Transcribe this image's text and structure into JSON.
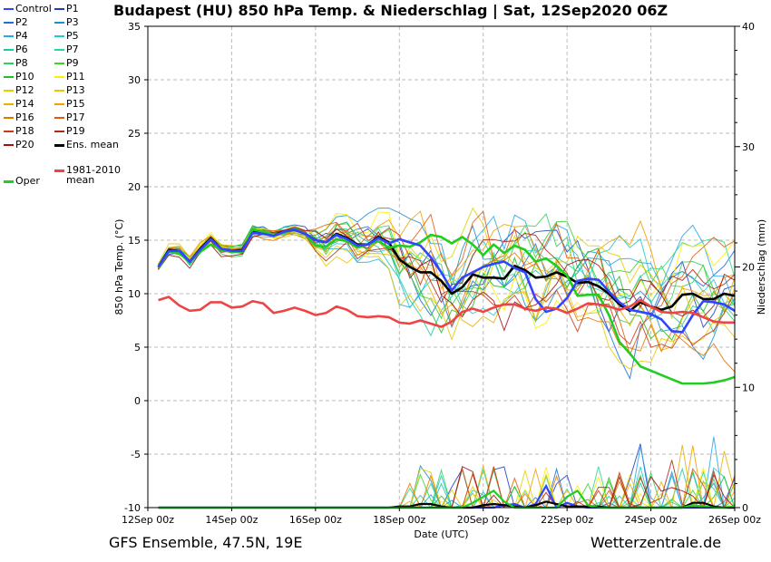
{
  "title": "Budapest  (HU)  850 hPa Temp. & Niederschlag | Sat, 12Sep2020 06Z",
  "footer_left": "GFS Ensemble, 47.5N, 19E",
  "footer_right": "Wetterzentrale.de",
  "chart_data": {
    "type": "line",
    "title": "Budapest  (HU)  850 hPa Temp. & Niederschlag | Sat, 12Sep2020 06Z",
    "xlabel": "Date (UTC)",
    "ylabel": "850 hPa Temp. (°C)",
    "y2label": "Niederschlag (mm)",
    "x_ticks": [
      "12Sep 00z",
      "14Sep 00z",
      "16Sep 00z",
      "18Sep 00z",
      "20Sep 00z",
      "22Sep 00z",
      "24Sep 00z",
      "26Sep 00z"
    ],
    "x_range_hours": [
      0,
      336
    ],
    "ylim": [
      -10,
      35
    ],
    "y_ticks": [
      -10,
      -5,
      0,
      5,
      10,
      15,
      20,
      25,
      30,
      35
    ],
    "y2lim": [
      0,
      40
    ],
    "y2_ticks": [
      0,
      10,
      20,
      30,
      40
    ],
    "x_hours": [
      6,
      12,
      18,
      24,
      30,
      36,
      42,
      48,
      54,
      60,
      66,
      72,
      78,
      84,
      90,
      96,
      102,
      108,
      114,
      120,
      126,
      132,
      138,
      144,
      150,
      156,
      162,
      168,
      174,
      180,
      186,
      192,
      198,
      204,
      210,
      216,
      222,
      228,
      234,
      240,
      246,
      252,
      258,
      264,
      270,
      276,
      282,
      288,
      294,
      300,
      306,
      312,
      318,
      324,
      330,
      336
    ],
    "key_series": [
      {
        "name": "Ens. mean",
        "color": "#000000",
        "width": 2.6,
        "values": [
          12.5,
          14.1,
          14.0,
          13.0,
          14.2,
          15.2,
          14.2,
          14.0,
          14.1,
          15.8,
          15.7,
          15.5,
          15.8,
          16.0,
          15.6,
          15.0,
          14.8,
          15.6,
          15.2,
          14.6,
          14.6,
          15.3,
          14.8,
          13.2,
          12.5,
          12.0,
          12.0,
          11.2,
          10.0,
          10.6,
          11.8,
          11.5,
          11.5,
          11.4,
          12.6,
          12.2,
          11.5,
          11.6,
          12.0,
          11.6,
          11.0,
          11.1,
          10.7,
          10.0,
          9.0,
          8.4,
          9.2,
          8.8,
          8.5,
          8.8,
          9.9,
          10.0,
          9.5,
          9.5,
          10.0,
          9.8
        ]
      },
      {
        "name": "Oper",
        "color": "#22cc22",
        "width": 2.6,
        "values": [
          12.4,
          13.9,
          13.8,
          13.0,
          13.9,
          14.6,
          14.1,
          13.9,
          13.9,
          16.0,
          15.8,
          15.5,
          15.7,
          16.1,
          15.6,
          14.5,
          14.4,
          15.1,
          14.9,
          14.3,
          14.6,
          14.9,
          14.3,
          14.5,
          14.4,
          14.8,
          15.5,
          15.3,
          14.7,
          15.3,
          14.6,
          13.6,
          14.6,
          13.8,
          14.5,
          14.1,
          13.0,
          13.3,
          12.6,
          11.7,
          9.8,
          9.9,
          9.9,
          8.0,
          5.5,
          4.4,
          3.2,
          2.8,
          2.4,
          2.0,
          1.6,
          1.6,
          1.6,
          1.7,
          1.9,
          2.2
        ]
      },
      {
        "name": "Control",
        "color": "#3344ff",
        "width": 2.6,
        "values": [
          12.5,
          14.0,
          14.0,
          13.0,
          14.1,
          15.1,
          14.2,
          14.0,
          14.0,
          15.7,
          15.6,
          15.4,
          15.8,
          16.0,
          15.6,
          15.0,
          14.8,
          15.5,
          15.1,
          14.5,
          14.6,
          15.2,
          14.7,
          15.1,
          14.8,
          14.5,
          13.4,
          12.0,
          10.3,
          11.5,
          12.0,
          12.5,
          12.8,
          13.0,
          12.4,
          12.0,
          9.5,
          8.3,
          8.6,
          9.6,
          11.2,
          11.4,
          11.3,
          10.2,
          9.2,
          8.5,
          8.3,
          8.1,
          7.6,
          6.5,
          6.4,
          8.0,
          9.3,
          9.2,
          9.0,
          8.4
        ]
      },
      {
        "name": "1981-2010 mean",
        "color": "#ee4444",
        "width": 2.6,
        "values": [
          9.4,
          9.7,
          8.9,
          8.4,
          8.5,
          9.2,
          9.2,
          8.7,
          8.8,
          9.3,
          9.1,
          8.2,
          8.4,
          8.7,
          8.4,
          8.0,
          8.2,
          8.8,
          8.5,
          7.9,
          7.8,
          7.9,
          7.8,
          7.3,
          7.2,
          7.5,
          7.2,
          6.9,
          7.4,
          8.3,
          8.6,
          8.3,
          8.7,
          9.0,
          9.0,
          8.6,
          8.4,
          8.7,
          8.6,
          8.2,
          8.6,
          9.1,
          9.0,
          8.8,
          8.5,
          8.8,
          9.4,
          8.8,
          8.3,
          8.2,
          8.3,
          8.2,
          7.8,
          7.4,
          7.3,
          7.3
        ]
      }
    ],
    "precip_series": [
      {
        "name": "Control",
        "color": "#3344ff",
        "width": 2.2,
        "values": [
          0,
          0,
          0,
          0,
          0,
          0,
          0,
          0,
          0,
          0,
          0,
          0,
          0,
          0,
          0,
          0,
          0,
          0,
          0,
          0,
          0,
          0,
          0,
          0,
          0,
          0,
          0,
          0,
          0,
          0,
          0,
          0,
          0,
          0.2,
          0.3,
          0,
          0.3,
          1.8,
          0,
          0.4,
          0.1,
          0,
          0,
          0,
          0,
          0,
          0,
          0,
          0,
          0,
          0,
          0,
          0,
          0,
          0,
          0
        ]
      },
      {
        "name": "Ens. mean",
        "color": "#000000",
        "width": 2.2,
        "values": [
          0,
          0,
          0,
          0,
          0,
          0,
          0,
          0,
          0,
          0,
          0,
          0,
          0,
          0,
          0,
          0,
          0,
          0,
          0,
          0,
          0,
          0,
          0,
          0.1,
          0.1,
          0.3,
          0.3,
          0.1,
          0,
          0,
          0,
          0.2,
          0.3,
          0.2,
          0.1,
          0,
          0.2,
          0.5,
          0.3,
          0.1,
          0.1,
          0.1,
          0.1,
          0,
          0,
          0,
          0,
          0,
          0,
          0,
          0,
          0.4,
          0.4,
          0.1,
          0,
          0
        ]
      },
      {
        "name": "Oper",
        "color": "#22cc22",
        "width": 2.2,
        "values": [
          0,
          0,
          0,
          0,
          0,
          0,
          0,
          0,
          0,
          0,
          0,
          0,
          0,
          0,
          0,
          0,
          0,
          0,
          0,
          0,
          0,
          0,
          0,
          0,
          0,
          0,
          0,
          0,
          0,
          0,
          0.4,
          0.9,
          1.4,
          0.5,
          0,
          0,
          0,
          0,
          0,
          0.9,
          1.4,
          0.2,
          0,
          0,
          0,
          0,
          0,
          0,
          0,
          0,
          0,
          0.2,
          0.1,
          0,
          0,
          0.1
        ]
      }
    ],
    "legend": [
      {
        "label": "Control",
        "color": "#3344ff"
      },
      {
        "label": "P1",
        "color": "#1f3fbf"
      },
      {
        "label": "P2",
        "color": "#1f6fd8"
      },
      {
        "label": "P3",
        "color": "#1e90c8"
      },
      {
        "label": "P4",
        "color": "#25a8e8"
      },
      {
        "label": "P5",
        "color": "#20c8c8"
      },
      {
        "label": "P6",
        "color": "#20c8a0"
      },
      {
        "label": "P7",
        "color": "#2ad890"
      },
      {
        "label": "P8",
        "color": "#30d060"
      },
      {
        "label": "P9",
        "color": "#40d030"
      },
      {
        "label": "P10",
        "color": "#20c020"
      },
      {
        "label": "P11",
        "color": "#ffee00"
      },
      {
        "label": "P12",
        "color": "#e0d000"
      },
      {
        "label": "P13",
        "color": "#e8c800"
      },
      {
        "label": "P14",
        "color": "#e8b000"
      },
      {
        "label": "P15",
        "color": "#f0a000"
      },
      {
        "label": "P16",
        "color": "#e07800"
      },
      {
        "label": "P17",
        "color": "#e05a10"
      },
      {
        "label": "P18",
        "color": "#c83a18"
      },
      {
        "label": "P19",
        "color": "#b02818"
      },
      {
        "label": "P20",
        "color": "#a01010"
      },
      {
        "label": "Ens. mean",
        "color": "#000000"
      },
      {
        "label": "1981-2010",
        "color": "#ee4444"
      },
      {
        "label": "mean",
        "color": ""
      },
      {
        "label": "Oper",
        "color": "#22cc22"
      }
    ]
  }
}
